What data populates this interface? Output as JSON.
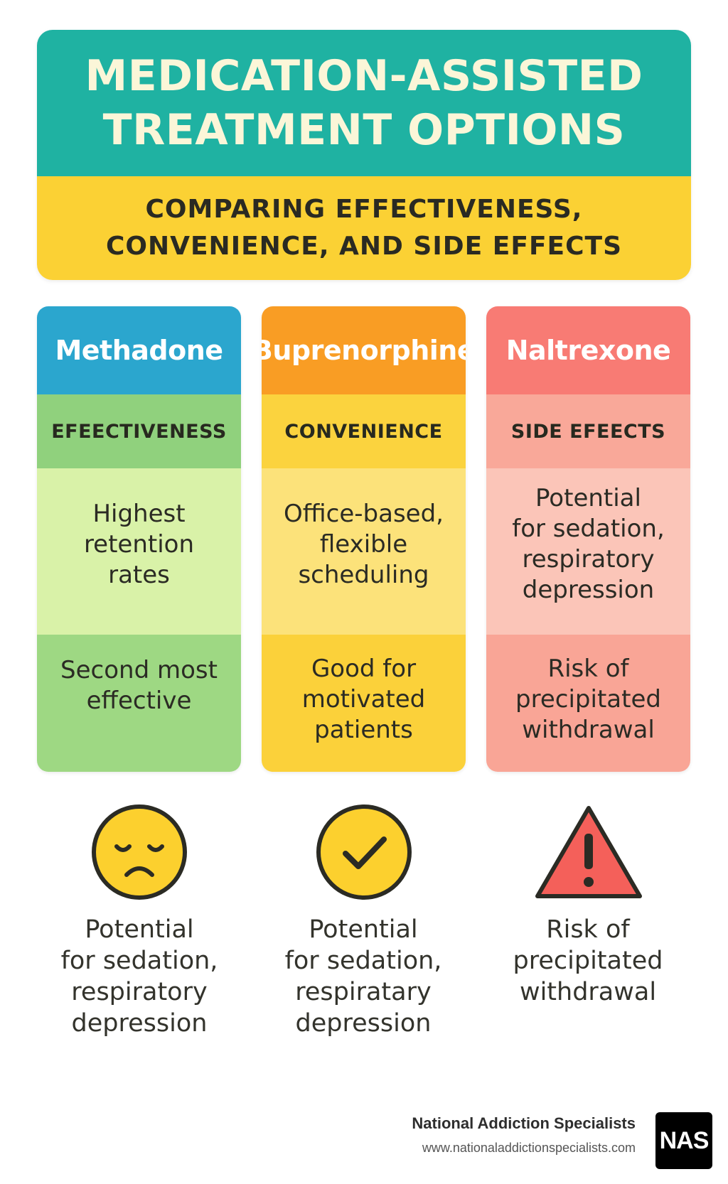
{
  "header": {
    "title_lines": [
      "MEDICATION-ASSISTED",
      "TREATMENT OPTIONS"
    ],
    "subtitle_lines": [
      "COMPARING EFFECTIVENESS,",
      "CONVENIENCE, AND SIDE EFFECTS"
    ]
  },
  "columns": [
    {
      "name": "Methadone",
      "category": "EFEECTIVENESS",
      "description": [
        "Highest",
        "retention",
        "rates"
      ],
      "detail": [
        "Second most",
        "effective"
      ],
      "colors": {
        "header": "#2ba6ce",
        "category": "#90d17d",
        "description": "#d9f2a8",
        "detail": "#9ed883"
      }
    },
    {
      "name": "Buprenorphine",
      "category": "CONVENIENCE",
      "description": [
        "Office-based,",
        "flexible",
        "scheduling"
      ],
      "detail": [
        "Good for",
        "motivated",
        "patients"
      ],
      "colors": {
        "header": "#f99d24",
        "category": "#fbd33e",
        "description": "#fce27a",
        "detail": "#fbd13a"
      }
    },
    {
      "name": "Naltrexone",
      "category": "SIDE EFEECTS",
      "description": [
        "Potential",
        "for sedation,",
        "respiratory",
        "depression"
      ],
      "detail": [
        "Risk of",
        "precipitated",
        "withdrawal"
      ],
      "colors": {
        "header": "#f87b74",
        "category": "#f9a899",
        "description": "#fbc5b8",
        "detail": "#f9a596"
      }
    }
  ],
  "icons": [
    {
      "name": "sad-face-icon",
      "caption": [
        "Potential",
        "for sedation,",
        "respiratory",
        "depression"
      ]
    },
    {
      "name": "check-circle-icon",
      "caption": [
        "Potential",
        "for sedation,",
        "respiratary",
        "depression"
      ]
    },
    {
      "name": "warning-triangle-icon",
      "caption": [
        "Risk of",
        "precipitated",
        "withdrawal"
      ]
    }
  ],
  "footer": {
    "organization": "National Addiction Specialists",
    "url": "www.nationaladdictionspecialists.com",
    "logo_text": "NAS"
  }
}
